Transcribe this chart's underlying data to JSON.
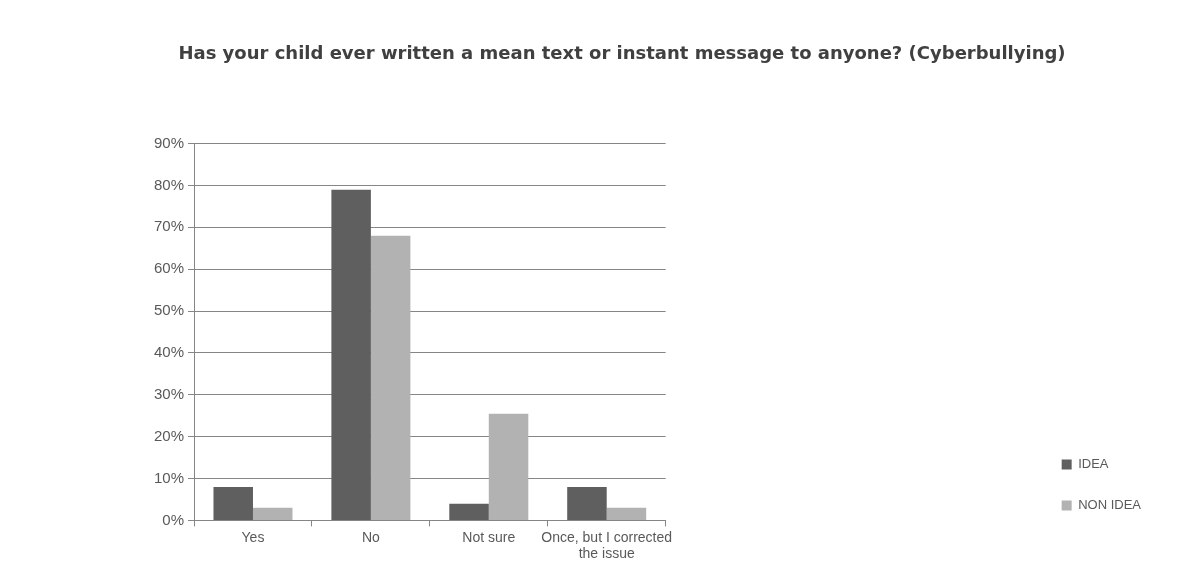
{
  "chart_data": {
    "type": "bar",
    "title": "Has your child ever written a mean text or instant message to anyone? (Cyberbullying)",
    "categories": [
      "Yes",
      "No",
      "Not sure",
      "Once, but I corrected the issue"
    ],
    "series": [
      {
        "name": "IDEA",
        "color": "#5f5f5f",
        "values": [
          8,
          79,
          4,
          8
        ]
      },
      {
        "name": "NON IDEA",
        "color": "#b2b2b2",
        "values": [
          3,
          68,
          25.5,
          3
        ]
      }
    ],
    "ylim": [
      0,
      90
    ],
    "yticks": [
      {
        "value": 0,
        "label": "0%"
      },
      {
        "value": 10,
        "label": "10%"
      },
      {
        "value": 20,
        "label": "20%"
      },
      {
        "value": 30,
        "label": "30%"
      },
      {
        "value": 40,
        "label": "40%"
      },
      {
        "value": 50,
        "label": "50%"
      },
      {
        "value": 60,
        "label": "60%"
      },
      {
        "value": 70,
        "label": "70%"
      },
      {
        "value": 80,
        "label": "80%"
      },
      {
        "value": 90,
        "label": "90%"
      }
    ],
    "grid": "y",
    "legend": "right"
  }
}
